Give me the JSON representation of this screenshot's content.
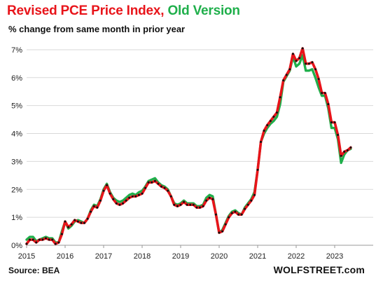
{
  "header": {
    "title_part1": "Revised PCE Price Index",
    "title_sep": ", ",
    "title_part2": "Old Version",
    "subtitle": "% change from same month in prior year"
  },
  "footer": {
    "source": "Source: BEA",
    "brand": "WOLFSTREET.com"
  },
  "colors": {
    "revised": "#e8141a",
    "old": "#1faf4b",
    "markers": "#111111",
    "grid": "#d9d9d9"
  },
  "chart_data": {
    "type": "line",
    "x_start": "2015-01",
    "x_interval": "monthly",
    "xlim": [
      2015.0,
      2024.0
    ],
    "ylim": [
      0,
      7.4
    ],
    "x_ticks": [
      {
        "value": 2015,
        "label": "2015"
      },
      {
        "value": 2016,
        "label": "2016"
      },
      {
        "value": 2017,
        "label": "2017"
      },
      {
        "value": 2018,
        "label": "2018"
      },
      {
        "value": 2019,
        "label": "2019"
      },
      {
        "value": 2020,
        "label": "2020"
      },
      {
        "value": 2021,
        "label": "2021"
      },
      {
        "value": 2022,
        "label": "2022"
      },
      {
        "value": 2023,
        "label": "2023"
      }
    ],
    "y_ticks": [
      {
        "value": 0,
        "label": "0%"
      },
      {
        "value": 1,
        "label": "1%"
      },
      {
        "value": 2,
        "label": "2%"
      },
      {
        "value": 3,
        "label": "3%"
      },
      {
        "value": 4,
        "label": "4%"
      },
      {
        "value": 5,
        "label": "5%"
      },
      {
        "value": 6,
        "label": "6%"
      },
      {
        "value": 7,
        "label": "7%"
      }
    ],
    "grid": "horizontal",
    "series": [
      {
        "name": "Revised PCE Price Index",
        "color": "#e8141a",
        "values": [
          0.05,
          0.2,
          0.2,
          0.1,
          0.2,
          0.2,
          0.25,
          0.2,
          0.2,
          0.05,
          0.1,
          0.4,
          0.85,
          0.65,
          0.75,
          0.9,
          0.85,
          0.8,
          0.8,
          0.95,
          1.2,
          1.4,
          1.35,
          1.6,
          1.95,
          2.15,
          1.85,
          1.65,
          1.5,
          1.45,
          1.5,
          1.6,
          1.7,
          1.75,
          1.75,
          1.8,
          1.85,
          2.05,
          2.25,
          2.25,
          2.3,
          2.2,
          2.1,
          2.05,
          1.95,
          1.75,
          1.45,
          1.4,
          1.45,
          1.55,
          1.45,
          1.45,
          1.45,
          1.35,
          1.35,
          1.4,
          1.6,
          1.7,
          1.65,
          1.1,
          0.45,
          0.5,
          0.75,
          1.0,
          1.15,
          1.2,
          1.1,
          1.1,
          1.3,
          1.45,
          1.6,
          1.8,
          2.7,
          3.7,
          4.1,
          4.3,
          4.45,
          4.6,
          4.75,
          5.3,
          5.9,
          6.1,
          6.3,
          6.85,
          6.6,
          6.7,
          7.05,
          6.5,
          6.5,
          6.55,
          6.3,
          5.95,
          5.45,
          5.45,
          5.05,
          4.4,
          4.4,
          3.95,
          3.2,
          3.35,
          3.4,
          3.5
        ]
      },
      {
        "name": "Old Version",
        "color": "#1faf4b",
        "values": [
          0.2,
          0.3,
          0.3,
          0.15,
          0.2,
          0.25,
          0.3,
          0.25,
          0.25,
          0.1,
          0.1,
          0.5,
          0.85,
          0.6,
          0.7,
          0.85,
          0.9,
          0.85,
          0.8,
          0.95,
          1.25,
          1.45,
          1.4,
          1.65,
          2.0,
          2.2,
          1.9,
          1.7,
          1.6,
          1.55,
          1.6,
          1.7,
          1.8,
          1.85,
          1.8,
          1.9,
          1.95,
          2.1,
          2.3,
          2.35,
          2.4,
          2.25,
          2.15,
          2.1,
          2.0,
          1.75,
          1.5,
          1.45,
          1.5,
          1.6,
          1.5,
          1.5,
          1.5,
          1.4,
          1.4,
          1.45,
          1.7,
          1.8,
          1.75,
          1.1,
          0.45,
          0.55,
          0.8,
          1.05,
          1.2,
          1.25,
          1.15,
          1.1,
          1.35,
          1.5,
          1.65,
          1.9,
          2.7,
          3.7,
          4.0,
          4.2,
          4.35,
          4.45,
          4.6,
          5.05,
          5.85,
          6.05,
          6.25,
          6.75,
          6.4,
          6.5,
          6.8,
          6.25,
          6.25,
          6.3,
          6.0,
          5.65,
          5.35,
          5.35,
          4.9,
          4.2,
          4.2,
          3.8,
          2.95,
          3.25,
          3.4,
          3.45
        ]
      }
    ]
  }
}
